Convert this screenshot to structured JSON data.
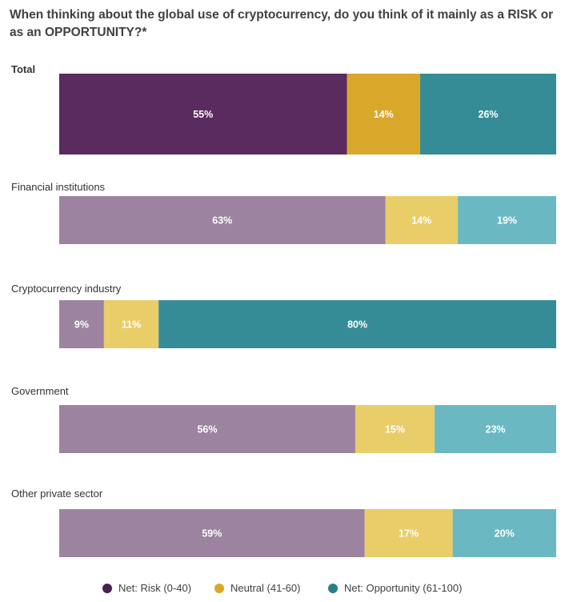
{
  "colors": {
    "risk": "#5a2b5e",
    "neutral": "#d9a82a",
    "opportunity": "#368c96",
    "risk_light": "#9c83a0",
    "neutral_light": "#e9cd69",
    "opportunity_light": "#6ab9c2",
    "risk_legend": "#4a1f52",
    "opportunity_legend": "#2a7c89"
  },
  "chart_data": {
    "type": "bar",
    "orientation": "horizontal",
    "stacked": true,
    "title": "When thinking about the global use of cryptocurrency, do you think of it mainly as a RISK or as an OPPORTUNITY?*",
    "categories": [
      "Total",
      "Financial institutions",
      "Cryptocurrency industry",
      "Government",
      "Other private sector"
    ],
    "series": [
      {
        "name": "Net: Risk (0-40)",
        "values": [
          55,
          63,
          9,
          56,
          59
        ]
      },
      {
        "name": "Neutral (41-60)",
        "values": [
          14,
          14,
          11,
          15,
          17
        ]
      },
      {
        "name": "Net: Opportunity (61-100)",
        "values": [
          26,
          19,
          80,
          23,
          20
        ]
      }
    ],
    "value_format": "%",
    "legend_position": "bottom",
    "grid": false
  }
}
